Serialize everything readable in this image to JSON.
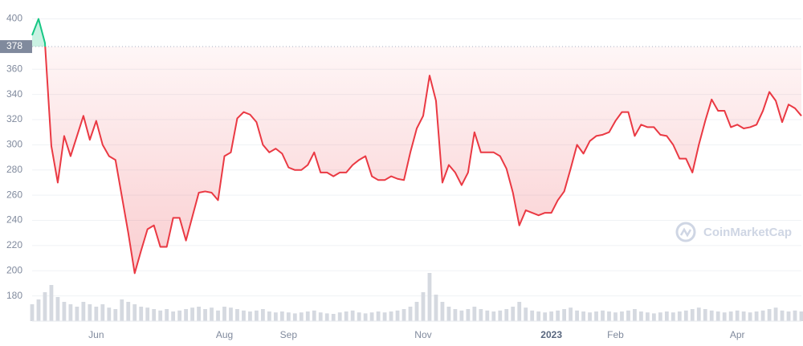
{
  "chart_data": {
    "type": "line",
    "categories": [
      null,
      null,
      null,
      null,
      null,
      null,
      null,
      null,
      null,
      null,
      "Jun",
      null,
      null,
      null,
      null,
      null,
      null,
      null,
      null,
      null,
      null,
      null,
      null,
      null,
      null,
      null,
      null,
      null,
      null,
      null,
      "Aug",
      null,
      null,
      null,
      null,
      null,
      null,
      null,
      null,
      null,
      "Sep",
      null,
      null,
      null,
      null,
      null,
      null,
      null,
      null,
      null,
      null,
      null,
      null,
      null,
      null,
      null,
      null,
      null,
      null,
      null,
      null,
      "Nov",
      null,
      null,
      null,
      null,
      null,
      null,
      null,
      null,
      null,
      null,
      null,
      null,
      null,
      null,
      null,
      null,
      null,
      null,
      null,
      "2023",
      null,
      null,
      null,
      null,
      null,
      null,
      null,
      null,
      null,
      "Feb",
      null,
      null,
      null,
      null,
      null,
      null,
      null,
      null,
      null,
      null,
      null,
      null,
      null,
      null,
      null,
      null,
      null,
      null,
      "Apr",
      null,
      null,
      null,
      null,
      null,
      null,
      null,
      null,
      null,
      null
    ],
    "values": [
      387,
      400,
      381,
      299,
      270,
      307,
      291,
      307,
      323,
      304,
      319,
      300,
      291,
      288,
      259,
      230,
      198,
      216,
      233,
      236,
      219,
      219,
      242,
      242,
      224,
      243,
      262,
      263,
      262,
      256,
      291,
      294,
      321,
      326,
      324,
      318,
      300,
      294,
      297,
      293,
      282,
      280,
      280,
      284,
      294,
      278,
      278,
      275,
      278,
      278,
      284,
      288,
      291,
      275,
      272,
      272,
      275,
      273,
      272,
      294,
      313,
      323,
      355,
      335,
      270,
      284,
      278,
      268,
      278,
      310,
      294,
      294,
      294,
      291,
      281,
      262,
      236,
      248,
      246,
      244,
      246,
      246,
      256,
      263,
      281,
      300,
      293,
      303,
      307,
      308,
      310,
      319,
      326,
      326,
      307,
      316,
      314,
      314,
      308,
      307,
      300,
      289,
      289,
      278,
      300,
      319,
      336,
      327,
      327,
      314,
      316,
      313,
      314,
      316,
      327,
      342,
      335,
      318,
      332,
      329,
      323
    ],
    "volume": [
      35,
      45,
      60,
      75,
      50,
      40,
      35,
      30,
      40,
      35,
      30,
      35,
      28,
      25,
      45,
      40,
      35,
      30,
      28,
      25,
      22,
      25,
      20,
      22,
      25,
      28,
      30,
      25,
      28,
      22,
      30,
      28,
      25,
      22,
      20,
      22,
      25,
      20,
      18,
      20,
      18,
      16,
      18,
      20,
      22,
      18,
      16,
      15,
      18,
      20,
      22,
      18,
      16,
      18,
      20,
      18,
      20,
      22,
      25,
      30,
      40,
      60,
      100,
      55,
      40,
      30,
      25,
      22,
      25,
      30,
      25,
      22,
      20,
      22,
      25,
      30,
      40,
      28,
      22,
      20,
      18,
      20,
      22,
      25,
      28,
      22,
      20,
      18,
      20,
      22,
      20,
      18,
      20,
      22,
      25,
      20,
      18,
      16,
      18,
      20,
      18,
      20,
      22,
      25,
      28,
      25,
      22,
      20,
      18,
      20,
      22,
      20,
      18,
      20,
      22,
      25,
      28,
      22,
      20,
      22,
      20
    ],
    "volume_lim": [
      0,
      100
    ],
    "baseline": 378,
    "ylim": [
      160,
      415
    ],
    "yticks": [
      180,
      200,
      220,
      240,
      260,
      280,
      300,
      320,
      340,
      360,
      400
    ],
    "grid": true,
    "color_up": "#16c784",
    "color_down": "#ea3943",
    "volume_color": "#d5d9e0",
    "watermark": "CoinMarketCap"
  }
}
